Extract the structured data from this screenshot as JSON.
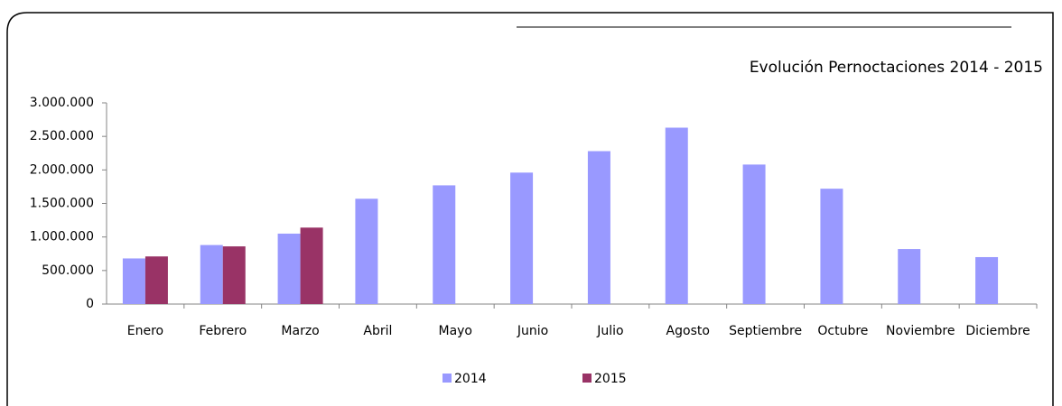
{
  "chart_data": {
    "type": "bar",
    "title": "Evolución Pernoctaciones 2014 - 2015",
    "categories": [
      "Enero",
      "Febrero",
      "Marzo",
      "Abril",
      "Mayo",
      "Junio",
      "Julio",
      "Agosto",
      "Septiembre",
      "Octubre",
      "Noviembre",
      "Diciembre"
    ],
    "series": [
      {
        "name": "2014",
        "color": "#9999ff",
        "values": [
          680000,
          880000,
          1050000,
          1570000,
          1770000,
          1960000,
          2280000,
          2630000,
          2080000,
          1720000,
          820000,
          700000
        ]
      },
      {
        "name": "2015",
        "color": "#993366",
        "values": [
          710000,
          860000,
          1140000,
          null,
          null,
          null,
          null,
          null,
          null,
          null,
          null,
          null
        ]
      }
    ],
    "ylim": [
      0,
      3000000
    ],
    "yticks": [
      0,
      {
        "value": 500000,
        "label": "500.000"
      },
      {
        "value": 1000000,
        "label": "1.000.000"
      },
      {
        "value": 1500000,
        "label": "1.500.000"
      },
      {
        "value": 2000000,
        "label": "2.000.000"
      },
      {
        "value": 2500000,
        "label": "2.500.000"
      },
      {
        "value": 3000000,
        "label": "3.000.000"
      }
    ],
    "grid": false,
    "legend": "bottom"
  }
}
